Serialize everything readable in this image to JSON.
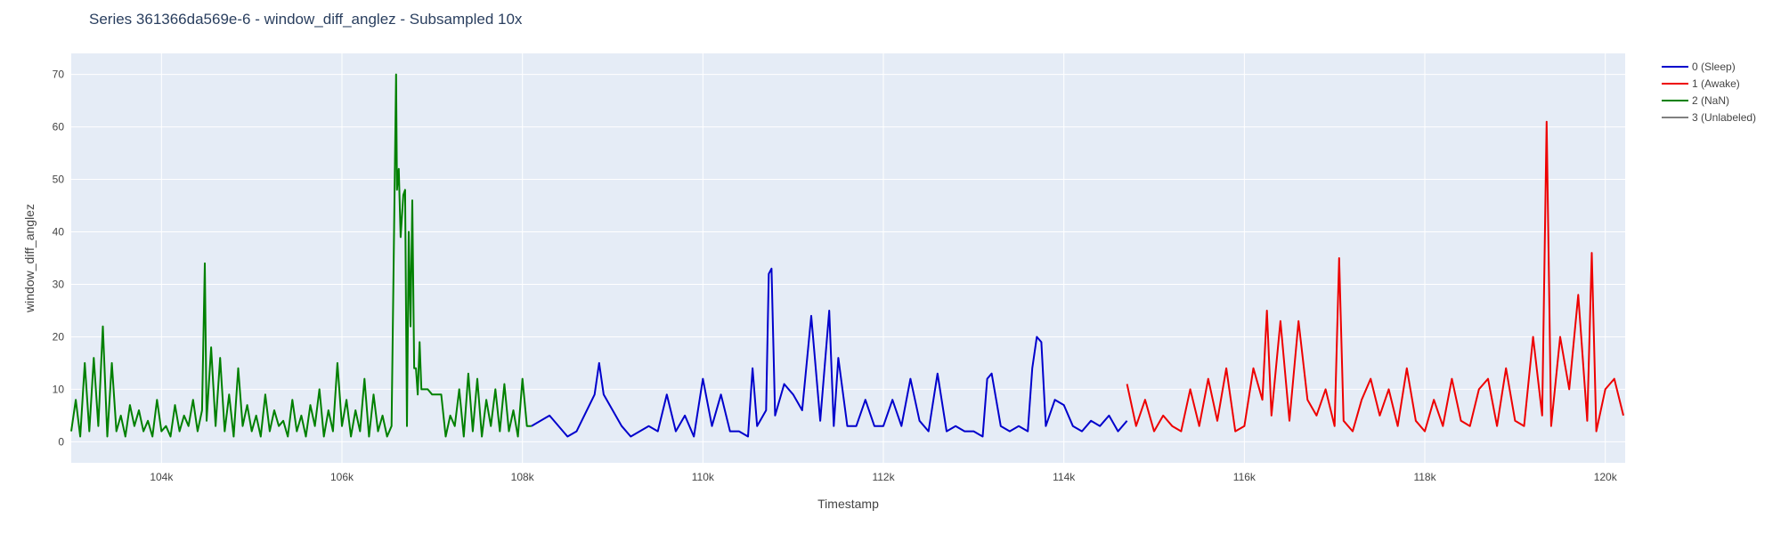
{
  "title": "Series 361366da569e-6 - window_diff_anglez - Subsampled 10x",
  "chart_data": {
    "type": "line",
    "title": "Series 361366da569e-6 - window_diff_anglez - Subsampled 10x",
    "xlabel": "Timestamp",
    "ylabel": "window_diff_anglez",
    "xlim": [
      103000,
      120220
    ],
    "ylim": [
      -4,
      74
    ],
    "grid": true,
    "legend_placement": "right",
    "x_tick_labels": [
      "104k",
      "106k",
      "108k",
      "110k",
      "112k",
      "114k",
      "116k",
      "118k",
      "120k"
    ],
    "y_tick_labels": [
      "0",
      "10",
      "20",
      "30",
      "40",
      "50",
      "60",
      "70"
    ],
    "series": [
      {
        "name": "0 (Sleep)",
        "color": "#0000cc",
        "x": [
          108100,
          108300,
          108500,
          108600,
          108800,
          108850,
          108900,
          109000,
          109100,
          109200,
          109400,
          109500,
          109600,
          109700,
          109800,
          109900,
          110000,
          110100,
          110200,
          110300,
          110400,
          110500,
          110550,
          110600,
          110700,
          110730,
          110760,
          110800,
          110900,
          111000,
          111100,
          111200,
          111300,
          111400,
          111450,
          111500,
          111600,
          111700,
          111800,
          111900,
          112000,
          112100,
          112200,
          112300,
          112400,
          112500,
          112600,
          112700,
          112800,
          112900,
          113000,
          113100,
          113150,
          113200,
          113300,
          113400,
          113500,
          113600,
          113650,
          113700,
          113750,
          113800,
          113900,
          114000,
          114100,
          114200,
          114300,
          114400,
          114500,
          114600,
          114700
        ],
        "y": [
          3,
          5,
          1,
          2,
          9,
          15,
          9,
          6,
          3,
          1,
          3,
          2,
          9,
          2,
          5,
          1,
          12,
          3,
          9,
          2,
          2,
          1,
          14,
          3,
          6,
          32,
          33,
          5,
          11,
          9,
          6,
          24,
          4,
          25,
          3,
          16,
          3,
          3,
          8,
          3,
          3,
          8,
          3,
          12,
          4,
          2,
          13,
          2,
          3,
          2,
          2,
          1,
          12,
          13,
          3,
          2,
          3,
          2,
          14,
          20,
          19,
          3,
          8,
          7,
          3,
          2,
          4,
          3,
          5,
          2,
          4
        ]
      },
      {
        "name": "1 (Awake)",
        "color": "#ee0000",
        "x": [
          114700,
          114800,
          114900,
          115000,
          115100,
          115200,
          115300,
          115400,
          115500,
          115600,
          115700,
          115800,
          115900,
          116000,
          116100,
          116200,
          116250,
          116300,
          116400,
          116500,
          116600,
          116700,
          116800,
          116900,
          117000,
          117050,
          117100,
          117200,
          117300,
          117400,
          117500,
          117600,
          117700,
          117800,
          117900,
          118000,
          118100,
          118200,
          118300,
          118400,
          118500,
          118600,
          118700,
          118800,
          118900,
          119000,
          119100,
          119200,
          119300,
          119350,
          119400,
          119500,
          119600,
          119700,
          119800,
          119850,
          119900,
          120000,
          120100,
          120200
        ],
        "y": [
          11,
          3,
          8,
          2,
          5,
          3,
          2,
          10,
          3,
          12,
          4,
          14,
          2,
          3,
          14,
          8,
          25,
          5,
          23,
          4,
          23,
          8,
          5,
          10,
          3,
          35,
          4,
          2,
          8,
          12,
          5,
          10,
          3,
          14,
          4,
          2,
          8,
          3,
          12,
          4,
          3,
          10,
          12,
          3,
          14,
          4,
          3,
          20,
          5,
          61,
          3,
          20,
          10,
          28,
          4,
          36,
          2,
          10,
          12,
          5
        ]
      },
      {
        "name": "2 (NaN)",
        "color": "#008000",
        "x": [
          103000,
          103050,
          103100,
          103150,
          103200,
          103250,
          103300,
          103350,
          103400,
          103450,
          103500,
          103550,
          103600,
          103650,
          103700,
          103750,
          103800,
          103850,
          103900,
          103950,
          104000,
          104050,
          104100,
          104150,
          104200,
          104250,
          104300,
          104350,
          104400,
          104450,
          104480,
          104500,
          104550,
          104600,
          104650,
          104700,
          104750,
          104800,
          104850,
          104900,
          104950,
          105000,
          105050,
          105100,
          105150,
          105200,
          105250,
          105300,
          105350,
          105400,
          105450,
          105500,
          105550,
          105600,
          105650,
          105700,
          105750,
          105800,
          105850,
          105900,
          105950,
          106000,
          106050,
          106100,
          106150,
          106200,
          106250,
          106300,
          106350,
          106400,
          106450,
          106500,
          106550,
          106600,
          106610,
          106630,
          106650,
          106680,
          106700,
          106720,
          106740,
          106760,
          106780,
          106800,
          106820,
          106840,
          106860,
          106880,
          106900,
          106950,
          107000,
          107050,
          107100,
          107150,
          107200,
          107250,
          107300,
          107350,
          107400,
          107450,
          107500,
          107550,
          107600,
          107650,
          107700,
          107750,
          107800,
          107850,
          107900,
          107950,
          108000,
          108050,
          108100
        ],
        "y": [
          2,
          8,
          1,
          15,
          2,
          16,
          3,
          22,
          1,
          15,
          2,
          5,
          1,
          7,
          3,
          6,
          2,
          4,
          1,
          8,
          2,
          3,
          1,
          7,
          2,
          5,
          3,
          8,
          2,
          6,
          34,
          4,
          18,
          3,
          16,
          2,
          9,
          1,
          14,
          3,
          7,
          2,
          5,
          1,
          9,
          2,
          6,
          3,
          4,
          1,
          8,
          2,
          5,
          1,
          7,
          3,
          10,
          1,
          6,
          2,
          15,
          3,
          8,
          1,
          6,
          2,
          12,
          1,
          9,
          2,
          5,
          1,
          3,
          70,
          48,
          52,
          39,
          47,
          48,
          3,
          40,
          22,
          46,
          14,
          14,
          9,
          19,
          10,
          10,
          10,
          9,
          9,
          9,
          1,
          5,
          3,
          10,
          1,
          13,
          2,
          12,
          1,
          8,
          3,
          10,
          2,
          11,
          2,
          6,
          1,
          12,
          3,
          3
        ]
      },
      {
        "name": "3 (Unlabeled)",
        "color": "#808080",
        "x": [],
        "y": []
      }
    ]
  }
}
